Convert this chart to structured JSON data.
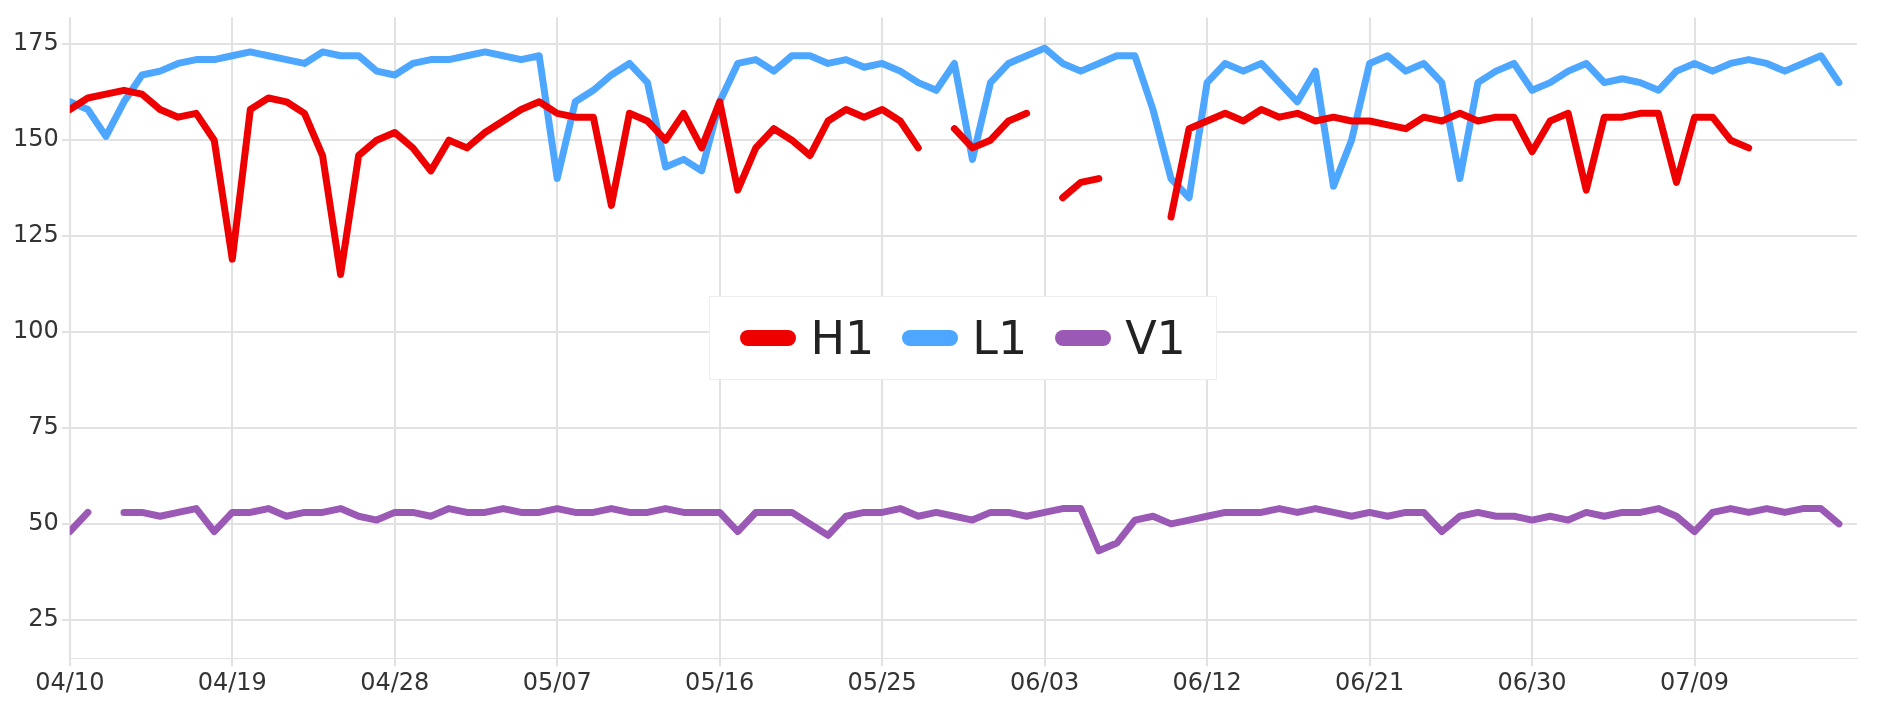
{
  "chart_data": {
    "type": "line",
    "x": [
      "--04-10",
      "--04-11",
      "--04-12",
      "--04-13",
      "--04-14",
      "--04-15",
      "--04-16",
      "--04-17",
      "--04-18",
      "--04-19",
      "--04-20",
      "--04-21",
      "--04-22",
      "--04-23",
      "--04-24",
      "--04-25",
      "--04-26",
      "--04-27",
      "--04-28",
      "--04-29",
      "--04-30",
      "--05-01",
      "--05-02",
      "--05-03",
      "--05-04",
      "--05-05",
      "--05-06",
      "--05-07",
      "--05-08",
      "--05-09",
      "--05-10",
      "--05-11",
      "--05-12",
      "--05-13",
      "--05-14",
      "--05-15",
      "--05-16",
      "--05-17",
      "--05-18",
      "--05-19",
      "--05-20",
      "--05-21",
      "--05-22",
      "--05-23",
      "--05-24",
      "--05-25",
      "--05-26",
      "--05-27",
      "--05-28",
      "--05-29",
      "--05-30",
      "--05-31",
      "--06-01",
      "--06-02",
      "--06-03",
      "--06-04",
      "--06-05",
      "--06-06",
      "--06-07",
      "--06-08",
      "--06-09",
      "--06-10",
      "--06-11",
      "--06-12",
      "--06-13",
      "--06-14",
      "--06-15",
      "--06-16",
      "--06-17",
      "--06-18",
      "--06-19",
      "--06-20",
      "--06-21",
      "--06-22",
      "--06-23",
      "--06-24",
      "--06-25",
      "--06-26",
      "--06-27",
      "--06-28",
      "--06-29",
      "--06-30",
      "--07-01",
      "--07-02",
      "--07-03",
      "--07-04",
      "--07-05",
      "--07-06",
      "--07-07",
      "--07-08",
      "--07-09",
      "--07-10",
      "--07-11",
      "--07-12",
      "--07-13",
      "--07-14",
      "--07-15",
      "--07-16",
      "--07-17"
    ],
    "series": [
      {
        "name": "H1",
        "color": "#ee0000",
        "values": [
          158,
          161,
          162,
          163,
          162,
          158,
          156,
          157,
          150,
          119,
          158,
          161,
          160,
          157,
          146,
          115,
          146,
          150,
          152,
          148,
          142,
          150,
          148,
          152,
          155,
          158,
          160,
          157,
          156,
          156,
          133,
          157,
          155,
          150,
          157,
          148,
          160,
          137,
          148,
          153,
          150,
          146,
          155,
          158,
          156,
          158,
          155,
          148,
          null,
          153,
          148,
          150,
          155,
          157,
          null,
          135,
          139,
          140,
          null,
          null,
          null,
          130,
          153,
          155,
          157,
          155,
          158,
          156,
          157,
          155,
          156,
          155,
          155,
          154,
          153,
          156,
          155,
          157,
          155,
          156,
          156,
          147,
          155,
          157,
          137,
          156,
          156,
          157,
          157,
          139,
          156,
          156,
          150,
          148,
          null,
          null,
          null,
          null,
          null
        ]
      },
      {
        "name": "L1",
        "color": "#4da6ff",
        "values": [
          160,
          158,
          151,
          160,
          167,
          168,
          170,
          171,
          171,
          172,
          173,
          172,
          171,
          170,
          173,
          172,
          172,
          168,
          167,
          170,
          171,
          171,
          172,
          173,
          172,
          171,
          172,
          140,
          160,
          163,
          167,
          170,
          165,
          143,
          145,
          142,
          160,
          170,
          171,
          168,
          172,
          172,
          170,
          171,
          169,
          170,
          168,
          165,
          163,
          170,
          145,
          165,
          170,
          172,
          174,
          170,
          168,
          170,
          172,
          172,
          158,
          140,
          135,
          165,
          170,
          168,
          170,
          165,
          160,
          168,
          138,
          150,
          170,
          172,
          168,
          170,
          165,
          140,
          165,
          168,
          170,
          163,
          165,
          168,
          170,
          165,
          166,
          165,
          163,
          168,
          170,
          168,
          170,
          171,
          170,
          168,
          170,
          172,
          165
        ]
      },
      {
        "name": "V1",
        "color": "#9b59b6",
        "values": [
          48,
          53,
          null,
          53,
          53,
          52,
          53,
          54,
          48,
          53,
          53,
          54,
          52,
          53,
          53,
          54,
          52,
          51,
          53,
          53,
          52,
          54,
          53,
          53,
          54,
          53,
          53,
          54,
          53,
          53,
          54,
          53,
          53,
          54,
          53,
          53,
          53,
          48,
          53,
          53,
          53,
          50,
          47,
          52,
          53,
          53,
          54,
          52,
          53,
          52,
          51,
          53,
          53,
          52,
          53,
          54,
          54,
          43,
          45,
          51,
          52,
          50,
          51,
          52,
          53,
          53,
          53,
          54,
          53,
          54,
          53,
          52,
          53,
          52,
          53,
          53,
          48,
          52,
          53,
          52,
          52,
          51,
          52,
          51,
          53,
          52,
          53,
          53,
          54,
          52,
          48,
          53,
          54,
          53,
          54,
          53,
          54,
          54,
          50
        ]
      }
    ],
    "xlim": [
      "--04-10",
      "--07-18"
    ],
    "xticks": [
      {
        "value": "--04-10",
        "label": "04/10"
      },
      {
        "value": "--04-19",
        "label": "04/19"
      },
      {
        "value": "--04-28",
        "label": "04/28"
      },
      {
        "value": "--05-07",
        "label": "05/07"
      },
      {
        "value": "--05-16",
        "label": "05/16"
      },
      {
        "value": "--05-25",
        "label": "05/25"
      },
      {
        "value": "--06-03",
        "label": "06/03"
      },
      {
        "value": "--06-12",
        "label": "06/12"
      },
      {
        "value": "--06-21",
        "label": "06/21"
      },
      {
        "value": "--06-30",
        "label": "06/30"
      },
      {
        "value": "--07-09",
        "label": "07/09"
      }
    ],
    "ylim": [
      15,
      182
    ],
    "yticks": [
      25,
      50,
      75,
      100,
      125,
      150,
      175
    ],
    "grid": true,
    "legend": "center",
    "marker": "none",
    "line_style": "solid"
  }
}
